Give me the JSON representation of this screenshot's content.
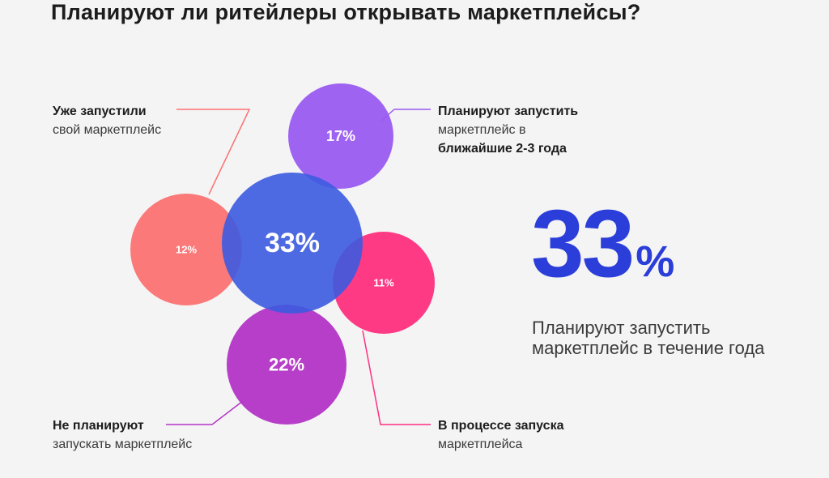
{
  "title": "Планируют ли ритейлеры открывать маркетплейсы?",
  "chart_data": {
    "type": "bubble",
    "title": "Планируют ли ритейлеры открывать маркетплейсы?",
    "series": [
      {
        "key": "launched",
        "value": 12,
        "display": "12%",
        "color": "#fb7272",
        "label_bold": "Уже запустили",
        "label_rest": [
          "свой маркетплейс"
        ]
      },
      {
        "key": "plan_1yr",
        "value": 33,
        "display": "33%",
        "color": "#3c5be0",
        "label_bold": "",
        "label_rest": []
      },
      {
        "key": "plan_2_3yr",
        "value": 17,
        "display": "17%",
        "color": "#9a5bf0",
        "label_bold": "Планируют запустить",
        "label_rest": [
          "маркетплейс в"
        ],
        "label_bold_tail": "ближайшие 2-3 года"
      },
      {
        "key": "in_progress",
        "value": 11,
        "display": "11%",
        "color": "#ff2f7e",
        "label_bold": "В процессе запуска",
        "label_rest": [
          "маркетплейса"
        ]
      },
      {
        "key": "not_planning",
        "value": 22,
        "display": "22%",
        "color": "#b334c6",
        "label_bold": "Не планируют",
        "label_rest": [
          "запускать маркетплейс"
        ]
      }
    ]
  },
  "highlight": {
    "number": "33",
    "unit": "%",
    "caption_line1": "Планируют запустить",
    "caption_line2": "маркетплейс в течение года"
  }
}
